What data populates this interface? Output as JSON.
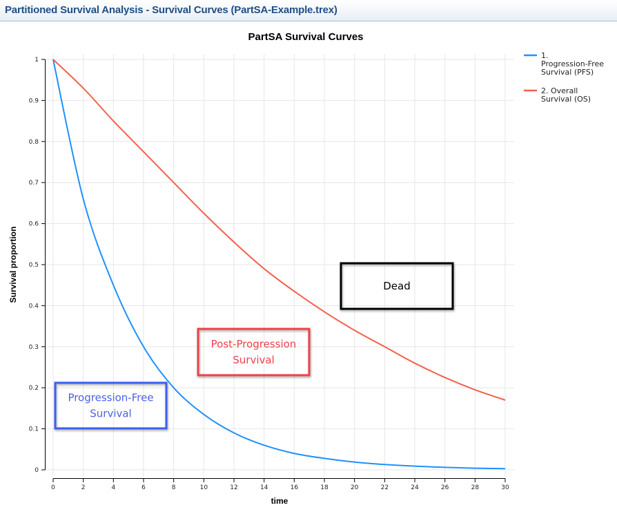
{
  "window": {
    "title": "Partitioned Survival Analysis - Survival Curves (PartSA-Example.trex)"
  },
  "chart_data": {
    "type": "line",
    "title": "PartSA Survival Curves",
    "xlabel": "time",
    "ylabel": "Survival proportion",
    "xlim": [
      0,
      30
    ],
    "ylim": [
      0,
      1
    ],
    "grid": true,
    "legend_position": "right",
    "x_ticks": [
      "0",
      "2",
      "4",
      "6",
      "8",
      "10",
      "12",
      "14",
      "16",
      "18",
      "20",
      "22",
      "24",
      "26",
      "28",
      "30"
    ],
    "y_ticks": [
      "0",
      "0.1",
      "0.2",
      "0.3",
      "0.4",
      "0.5",
      "0.6",
      "0.7",
      "0.8",
      "0.9",
      "1"
    ],
    "x": [
      0,
      2,
      4,
      6,
      8,
      10,
      12,
      14,
      16,
      18,
      20,
      22,
      24,
      26,
      28,
      30
    ],
    "series": [
      {
        "name": "1. Progression-Free Survival (PFS)",
        "legend_lines": [
          "1.",
          "Progression-Free",
          "Survival (PFS)"
        ],
        "color": "#1e90ff",
        "values": [
          1.0,
          0.66,
          0.45,
          0.3,
          0.2,
          0.135,
          0.09,
          0.06,
          0.04,
          0.028,
          0.019,
          0.013,
          0.009,
          0.006,
          0.004,
          0.003
        ]
      },
      {
        "name": "2. Overall Survival (OS)",
        "legend_lines": [
          "2. Overall",
          "Survival (OS)"
        ],
        "color": "#f4604a",
        "values": [
          1.0,
          0.93,
          0.85,
          0.775,
          0.7,
          0.625,
          0.555,
          0.49,
          0.435,
          0.385,
          0.34,
          0.3,
          0.26,
          0.225,
          0.195,
          0.17
        ]
      }
    ],
    "annotations": [
      {
        "lines": [
          "Dead"
        ],
        "border_color": "#000000",
        "text_color": "#000000"
      },
      {
        "lines": [
          "Post-Progression",
          "Survival"
        ],
        "border_color": "#f0404a",
        "text_color": "#f0404a"
      },
      {
        "lines": [
          "Progression-Free",
          "Survival"
        ],
        "border_color": "#3a5ef0",
        "text_color": "#4a60e8"
      }
    ]
  }
}
